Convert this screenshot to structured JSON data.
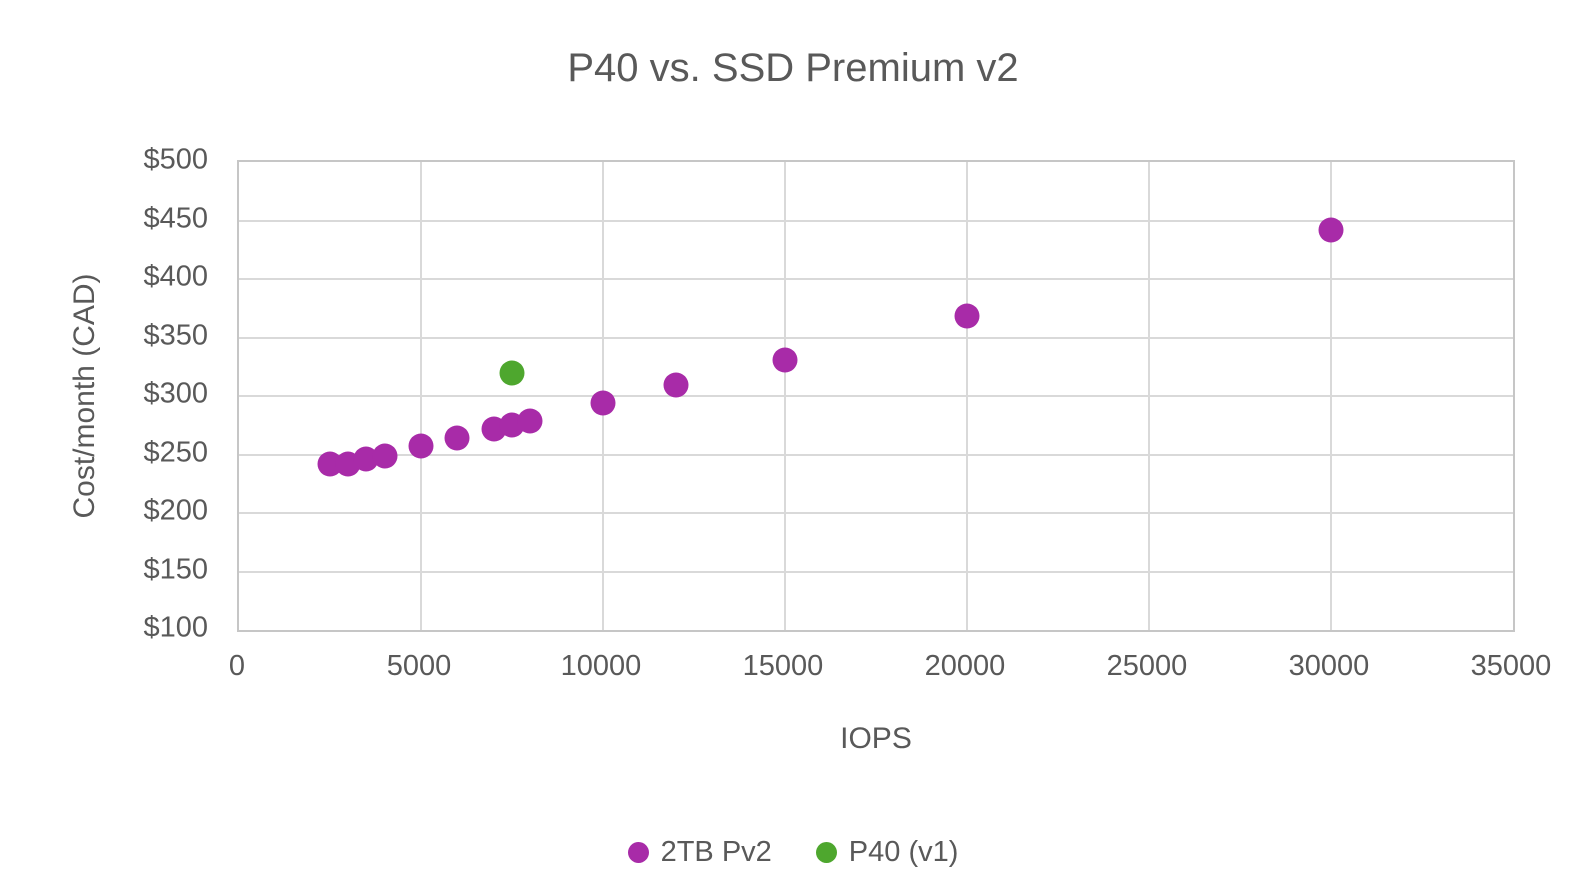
{
  "chart_data": {
    "type": "scatter",
    "title": "P40 vs. SSD Premium v2",
    "xlabel": "IOPS",
    "ylabel": "Cost/month (CAD)",
    "xlim": [
      0,
      35000
    ],
    "ylim": [
      100,
      500
    ],
    "x_ticks": [
      0,
      5000,
      10000,
      15000,
      20000,
      25000,
      30000,
      35000
    ],
    "x_tick_labels": [
      "0",
      "5000",
      "10000",
      "15000",
      "20000",
      "25000",
      "30000",
      "35000"
    ],
    "y_ticks": [
      100,
      150,
      200,
      250,
      300,
      350,
      400,
      450,
      500
    ],
    "y_tick_labels": [
      "$100",
      "$150",
      "$200",
      "$250",
      "$300",
      "$350",
      "$400",
      "$450",
      "$500"
    ],
    "grid": true,
    "legend_position": "bottom",
    "series": [
      {
        "name": "2TB Pv2",
        "color": "#A82BA8",
        "points": [
          [
            2500,
            242
          ],
          [
            3000,
            242
          ],
          [
            3500,
            246
          ],
          [
            4000,
            249
          ],
          [
            5000,
            257
          ],
          [
            6000,
            264
          ],
          [
            7000,
            272
          ],
          [
            7500,
            275
          ],
          [
            8000,
            279
          ],
          [
            10000,
            294
          ],
          [
            12000,
            309
          ],
          [
            15000,
            331
          ],
          [
            20000,
            368
          ],
          [
            30000,
            442
          ]
        ]
      },
      {
        "name": "P40 (v1)",
        "color": "#4EA72E",
        "points": [
          [
            7500,
            320
          ]
        ]
      }
    ]
  },
  "style": {
    "text_color": "#595959",
    "gridline_color": "#D9D9D9",
    "plot_border_color": "#C6C6C6",
    "background": "#FFFFFF"
  }
}
